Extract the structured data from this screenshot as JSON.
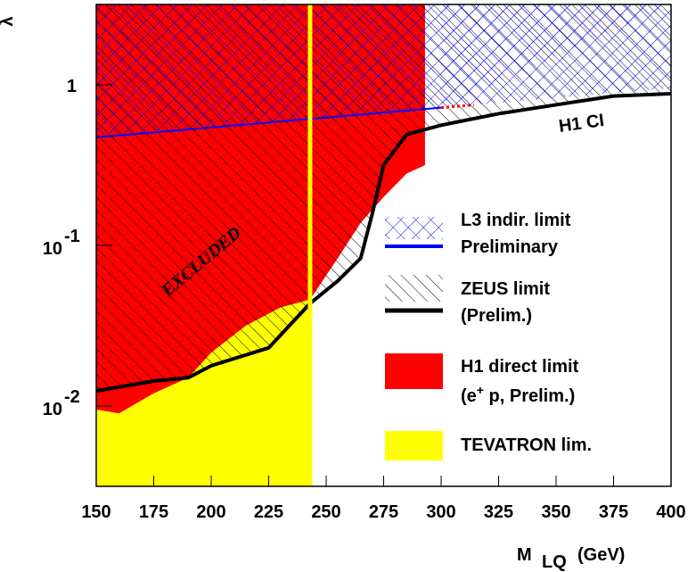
{
  "chart_data": {
    "type": "line",
    "ylog": true,
    "xlabel": "M",
    "xlabel_sub": "LQ",
    "xlabel_unit": "(GeV)",
    "ylabel": "λ",
    "xlim": [
      150,
      400
    ],
    "ylim": [
      0.00316,
      3.16
    ],
    "xticks": [
      150,
      175,
      200,
      225,
      250,
      275,
      300,
      325,
      350,
      375,
      400
    ],
    "yticks": [
      {
        "value": 0.01,
        "label": "10",
        "exponent": "-2"
      },
      {
        "value": 0.1,
        "label": "10",
        "exponent": "-1"
      },
      1
    ],
    "series": [
      {
        "name": "L3 indir. limit",
        "sublabel": [
          "Preliminary"
        ],
        "color": "#0000ff",
        "fill": "crosshatch",
        "x": [
          150,
          300
        ],
        "values": [
          0.47,
          0.72
        ]
      },
      {
        "name": "ZEUS limit",
        "sublabel": [
          "(Prelim.)"
        ],
        "color": "#000000",
        "fill": "hatch",
        "x": [
          150,
          175,
          190,
          200,
          225,
          243,
          255,
          265,
          270,
          275,
          285,
          300,
          325,
          350,
          375,
          400
        ],
        "values": [
          0.0124,
          0.0143,
          0.015,
          0.0178,
          0.023,
          0.0435,
          0.06,
          0.083,
          0.156,
          0.316,
          0.49,
          0.56,
          0.66,
          0.75,
          0.85,
          0.88
        ]
      },
      {
        "name": "H1 direct limit",
        "sublabel": [
          "(e",
          "+",
          " p, Prelim.)"
        ],
        "color": "#ff0000",
        "fill": "solid",
        "x": [
          150,
          160,
          175,
          190,
          200,
          215,
          230,
          243,
          255,
          265,
          275,
          285,
          293
        ],
        "values": [
          0.0095,
          0.009,
          0.012,
          0.015,
          0.0215,
          0.0316,
          0.041,
          0.046,
          0.083,
          0.138,
          0.2,
          0.28,
          0.316
        ]
      },
      {
        "name": "TEVATRON lim.",
        "color": "#ffff00",
        "fill": "band",
        "xmax": 243
      },
      {
        "name": "H1 CI",
        "color": "#ff0000",
        "legend": false,
        "dash_until": 325,
        "x": [
          300,
          325,
          350,
          375,
          400
        ],
        "values": [
          0.72,
          0.77,
          0.83,
          0.89,
          0.95
        ]
      }
    ],
    "annotations": [
      {
        "text": "EXCLUDED",
        "color": "#1010d0"
      }
    ]
  }
}
